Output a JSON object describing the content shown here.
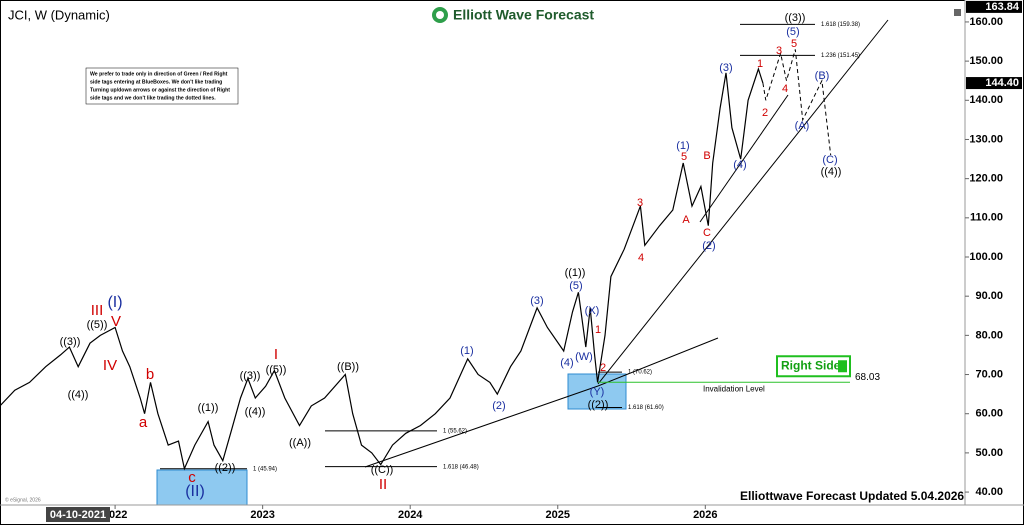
{
  "chart_data": {
    "type": "line",
    "title": "JCI, W (Dynamic)",
    "logo": "Elliott Wave Forecast",
    "footer": "Elliottwave Forecast Updated 5.04.2026",
    "copyright": "© eSignal, 2026",
    "start_date": "04-10-2021",
    "note": [
      "We prefer to trade only in direction of Green / Red Right",
      "side tags entering at BlueBoxes. We don't like trading",
      "Turning up/down arrows or against the direction of Right",
      "side tags and we don't like trading the dotted lines."
    ],
    "color": "#000000",
    "x": [
      2021.22,
      2021.32,
      2021.42,
      2021.53,
      2021.63,
      2021.69,
      2021.75,
      2021.83,
      2021.9,
      2022.0,
      2022.05,
      2022.1,
      2022.17,
      2022.2,
      2022.24,
      2022.29,
      2022.36,
      2022.43,
      2022.47,
      2022.54,
      2022.63,
      2022.67,
      2022.73,
      2022.79,
      2022.85,
      2022.9,
      2022.95,
      2023.02,
      2023.08,
      2023.15,
      2023.25,
      2023.33,
      2023.42,
      2023.56,
      2023.61,
      2023.67,
      2023.74,
      2023.8,
      2023.88,
      2023.97,
      2024.07,
      2024.17,
      2024.27,
      2024.39,
      2024.46,
      2024.54,
      2024.59,
      2024.68,
      2024.75,
      2024.86,
      2024.93,
      2025.04,
      2025.1,
      2025.14,
      2025.19,
      2025.22,
      2025.25,
      2025.27,
      2025.32,
      2025.36,
      2025.45,
      2025.56,
      2025.59,
      2025.69,
      2025.78,
      2025.85,
      2025.91,
      2025.97,
      2026.02,
      2026.05,
      2026.1,
      2026.14,
      2026.18,
      2026.24,
      2026.29,
      2026.36,
      2026.39
    ],
    "values": [
      62,
      66,
      68,
      72,
      75,
      77,
      72,
      78,
      80,
      82,
      76,
      72,
      64,
      60,
      68,
      60,
      52,
      53,
      46,
      52,
      58,
      52,
      48,
      56,
      64,
      69,
      64,
      67,
      71,
      64,
      57,
      62,
      64,
      70,
      60,
      52,
      50,
      47,
      52,
      55,
      57,
      60,
      64,
      74,
      70,
      68,
      65,
      72,
      76,
      87,
      82,
      76,
      86,
      91,
      77,
      87,
      75,
      68,
      80,
      95,
      102,
      113,
      103,
      108,
      112,
      124,
      113,
      118,
      108,
      124,
      138,
      147,
      133,
      125,
      140,
      148,
      144.4
    ],
    "projection_x": [
      2026.39,
      2026.41,
      2026.51,
      2026.55,
      2026.61,
      2026.66,
      2026.79,
      2026.85
    ],
    "projection_values": [
      144.4,
      140,
      152,
      145,
      153,
      135,
      145,
      126
    ],
    "xlim": [
      2021.22,
      2027.76
    ],
    "xticks": [
      2022,
      2023,
      2024,
      2025,
      2026
    ],
    "ylim": [
      36.7,
      165.6
    ],
    "yticks": [
      {
        "value": 40,
        "label": "40.00"
      },
      {
        "value": 50,
        "label": "50.00"
      },
      {
        "value": 60,
        "label": "60.00"
      },
      {
        "value": 70,
        "label": "70.00"
      },
      {
        "value": 80,
        "label": "80.00"
      },
      {
        "value": 90,
        "label": "90.00"
      },
      {
        "value": 100,
        "label": "100.00"
      },
      {
        "value": 110,
        "label": "110.00"
      },
      {
        "value": 120,
        "label": "120.00"
      },
      {
        "value": 130,
        "label": "130.00"
      },
      {
        "value": 140,
        "label": "140.00"
      },
      {
        "value": 150,
        "label": "150.00"
      },
      {
        "value": 160,
        "label": "160.00"
      }
    ],
    "price_tags": [
      {
        "value": 163.84,
        "label": "163.84"
      },
      {
        "value": 144.4,
        "label": "144.40"
      }
    ],
    "invalidation": {
      "value": 68.03,
      "label": "68.03",
      "text": "Invalidation Level",
      "tag": "Right Side"
    },
    "fib_levels": [
      {
        "value": 159.38,
        "label": "1.618 (159.38)"
      },
      {
        "value": 151.45,
        "label": "1.236 (151.45)"
      },
      {
        "value": 70.62,
        "label": "1 (70.62)"
      },
      {
        "value": 61.6,
        "label": "1.618 (61.60)"
      },
      {
        "value": 55.62,
        "label": "1 (55.62)"
      },
      {
        "value": 46.48,
        "label": "1.618 (46.48)"
      },
      {
        "value": 45.94,
        "label": "1 (45.94)"
      }
    ],
    "wave_labels_black": [
      "((3))",
      "((4))",
      "((5))",
      "((1))",
      "((2))",
      "((3))",
      "((4))",
      "((5))",
      "((A))",
      "((B))",
      "((C))",
      "((1))",
      "((2))",
      "((3))",
      "((4))"
    ],
    "wave_labels_red": [
      "III",
      "V",
      "IV",
      "b",
      "a",
      "c",
      "I",
      "II",
      "1",
      "2",
      "3",
      "4",
      "A",
      "5",
      "B",
      "C",
      "1",
      "2",
      "3",
      "4",
      "5"
    ],
    "wave_labels_blue": [
      "(I)",
      "(II)",
      "(1)",
      "(2)",
      "(3)",
      "(4)",
      "(5)",
      "(W)",
      "(X)",
      "(Y)",
      "(1)",
      "(2)",
      "(3)",
      "(4)",
      "(5)",
      "(A)",
      "(B)",
      "(C)"
    ]
  }
}
